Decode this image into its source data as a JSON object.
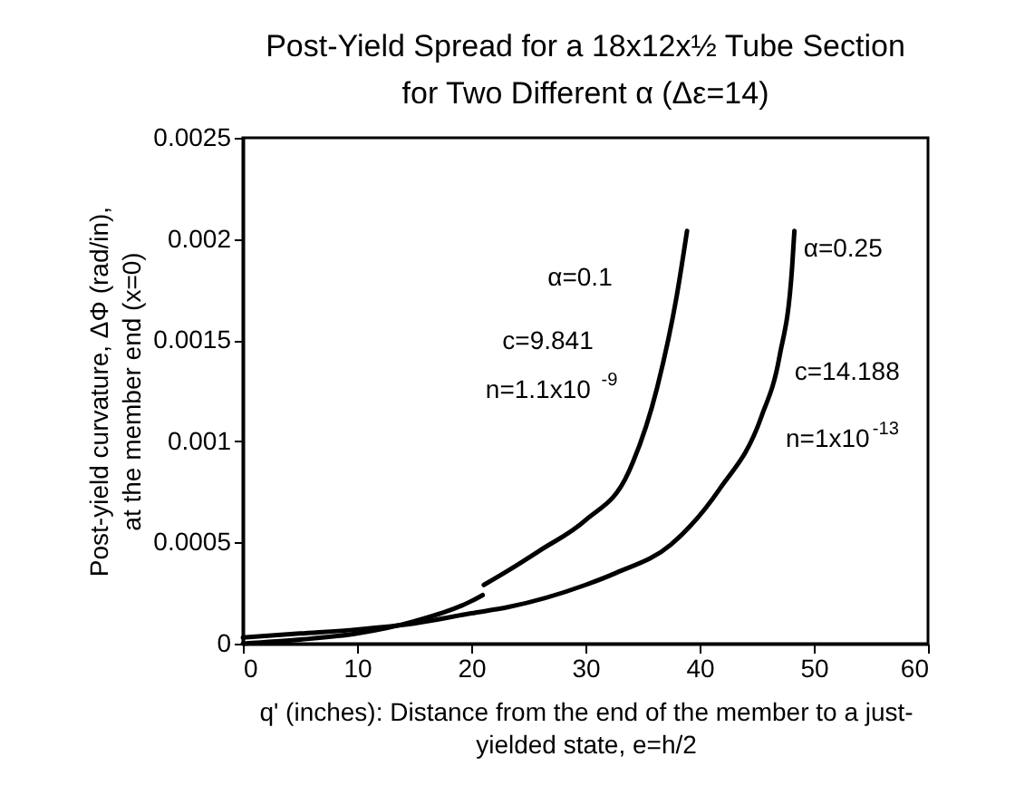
{
  "chart_data": {
    "type": "line",
    "title": [
      "Post-Yield Spread for a 18x12x½ Tube Section",
      "for Two Different α (Δε=14)"
    ],
    "xlabel": "q' (inches): Distance from the end of the member to a just-\nyielded state, e=h/2",
    "ylabel": "Post-yield curvature, ΔΦ  (rad/in),\nat the member end (x=0)",
    "xlim": [
      0,
      60
    ],
    "xticks": [
      0,
      10,
      20,
      30,
      40,
      50,
      60
    ],
    "ylim": [
      0,
      0.0025
    ],
    "yticks": [
      0,
      0.0005,
      0.001,
      0.0015,
      0.002,
      0.0025
    ],
    "grid": false,
    "marker": "none",
    "line_style": "solid",
    "series": [
      {
        "color": "#000000",
        "x": [
          0,
          5,
          10,
          15,
          20,
          21,
          21.05,
          21.1,
          23.2,
          26,
          30,
          33.8,
          36.3,
          38,
          38.9
        ],
        "values": [
          0,
          2e-05,
          5e-05,
          0.00011,
          0.00021,
          0.00024,
          null,
          0.00029,
          0.00036,
          0.00046,
          0.00061,
          0.00085,
          0.00127,
          0.00172,
          0.00204
        ]
      },
      {
        "color": "#000000",
        "x": [
          0,
          5,
          10,
          15,
          20,
          23.2,
          30,
          32.7,
          37.5,
          41.7,
          45.4,
          47,
          48.1,
          48.3
        ],
        "values": [
          3e-05,
          5e-05,
          7e-05,
          0.0001,
          0.00015,
          0.00018,
          0.00029,
          0.00035,
          0.00049,
          0.00076,
          0.00112,
          0.00142,
          0.00186,
          0.00204
        ]
      }
    ],
    "annotations": [
      "α=0.1",
      "c=9.841",
      "n=1.1x10$^{-9}$",
      "α=0.25",
      "c=14.188",
      "n=1x10$^{-13}$"
    ]
  }
}
